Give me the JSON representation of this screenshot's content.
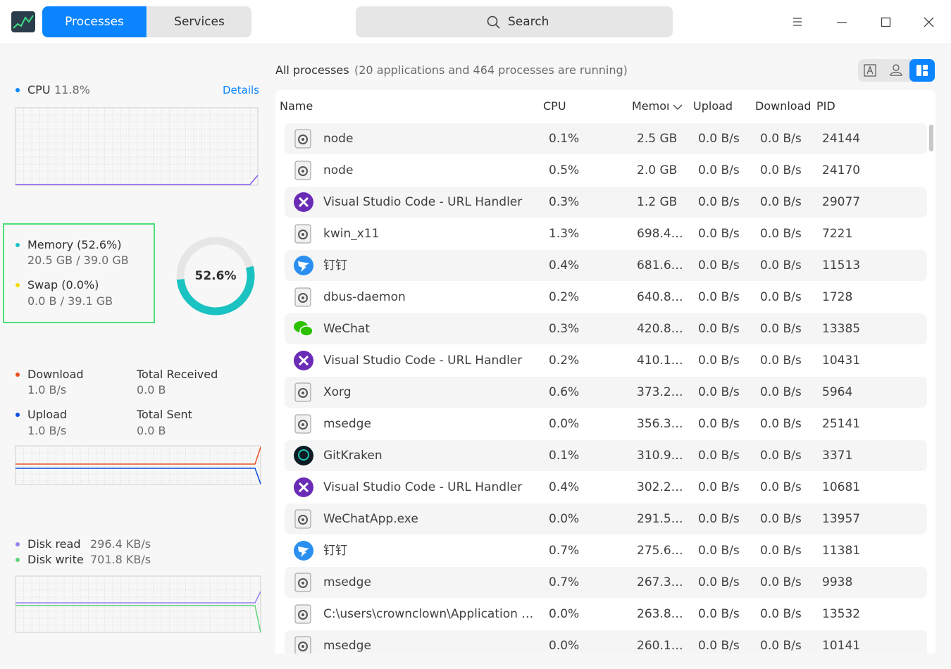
{
  "toolbar": {
    "tabs": [
      "Processes",
      "Services"
    ],
    "search": "Search"
  },
  "sidebar": {
    "cpu": {
      "label": "CPU",
      "value": "11.8%",
      "details": "Details"
    },
    "memory": {
      "label": "Memory (52.6%)",
      "value": "20.5 GB / 39.0 GB",
      "swap_label": "Swap (0.0%)",
      "swap_value": "0.0 B / 39.1 GB",
      "ring_value": 52.6,
      "ring_label": "52.6%"
    },
    "network": {
      "download_label": "Download",
      "download_value": "1.0 B/s",
      "received_label": "Total Received",
      "received_value": "0.0 B",
      "upload_label": "Upload",
      "upload_value": "1.0 B/s",
      "sent_label": "Total Sent",
      "sent_value": "0.0 B"
    },
    "disk": {
      "read_label": "Disk read",
      "read_value": "296.4 KB/s",
      "write_label": "Disk write",
      "write_value": "701.8 KB/s"
    }
  },
  "process_list": {
    "title": "All processes",
    "subtitle": "(20 applications and 464 processes are running)",
    "columns": [
      "Name",
      "CPU",
      "Memory",
      "Upload",
      "Download",
      "PID"
    ],
    "rows": [
      {
        "icon": "gear",
        "cells": [
          "node",
          "0.1%",
          "2.5 GB",
          "0.0 B/s",
          "0.0 B/s",
          "24144"
        ]
      },
      {
        "icon": "gear",
        "cells": [
          "node",
          "0.5%",
          "2.0 GB",
          "0.0 B/s",
          "0.0 B/s",
          "24170"
        ]
      },
      {
        "icon": "vscode",
        "cells": [
          "Visual Studio Code - URL Handler",
          "0.3%",
          "1.2 GB",
          "0.0 B/s",
          "0.0 B/s",
          "29077"
        ]
      },
      {
        "icon": "gear",
        "cells": [
          "kwin_x11",
          "1.3%",
          "698.4…",
          "0.0 B/s",
          "0.0 B/s",
          "7221"
        ]
      },
      {
        "icon": "dingtalk",
        "cells": [
          "钉钉",
          "0.4%",
          "681.6…",
          "0.0 B/s",
          "0.0 B/s",
          "11513"
        ]
      },
      {
        "icon": "gear",
        "cells": [
          "dbus-daemon",
          "0.2%",
          "640.8…",
          "0.0 B/s",
          "0.0 B/s",
          "1728"
        ]
      },
      {
        "icon": "wechat",
        "cells": [
          "WeChat",
          "0.3%",
          "420.8…",
          "0.0 B/s",
          "0.0 B/s",
          "13385"
        ]
      },
      {
        "icon": "vscode",
        "cells": [
          "Visual Studio Code - URL Handler",
          "0.2%",
          "410.1…",
          "0.0 B/s",
          "0.0 B/s",
          "10431"
        ]
      },
      {
        "icon": "gear",
        "cells": [
          "Xorg",
          "0.6%",
          "373.2…",
          "0.0 B/s",
          "0.0 B/s",
          "5964"
        ]
      },
      {
        "icon": "gear",
        "cells": [
          "msedge",
          "0.0%",
          "356.3…",
          "0.0 B/s",
          "0.0 B/s",
          "25141"
        ]
      },
      {
        "icon": "gitkraken",
        "cells": [
          "GitKraken",
          "0.1%",
          "310.9…",
          "0.0 B/s",
          "0.0 B/s",
          "3371"
        ]
      },
      {
        "icon": "vscode",
        "cells": [
          "Visual Studio Code - URL Handler",
          "0.4%",
          "302.2…",
          "0.0 B/s",
          "0.0 B/s",
          "10681"
        ]
      },
      {
        "icon": "gear",
        "cells": [
          "WeChatApp.exe",
          "0.0%",
          "291.5…",
          "0.0 B/s",
          "0.0 B/s",
          "13957"
        ]
      },
      {
        "icon": "dingtalk",
        "cells": [
          "钉钉",
          "0.7%",
          "275.6…",
          "0.0 B/s",
          "0.0 B/s",
          "11381"
        ]
      },
      {
        "icon": "gear",
        "cells": [
          "msedge",
          "0.7%",
          "267.3…",
          "0.0 B/s",
          "0.0 B/s",
          "9938"
        ]
      },
      {
        "icon": "gear",
        "cells": [
          "C:\\users\\crownclown\\Application …",
          "0.0%",
          "263.8…",
          "0.0 B/s",
          "0.0 B/s",
          "13532"
        ]
      },
      {
        "icon": "gear",
        "cells": [
          "msedge",
          "0.0%",
          "260.1…",
          "0.0 B/s",
          "0.0 B/s",
          "10141"
        ]
      }
    ]
  }
}
